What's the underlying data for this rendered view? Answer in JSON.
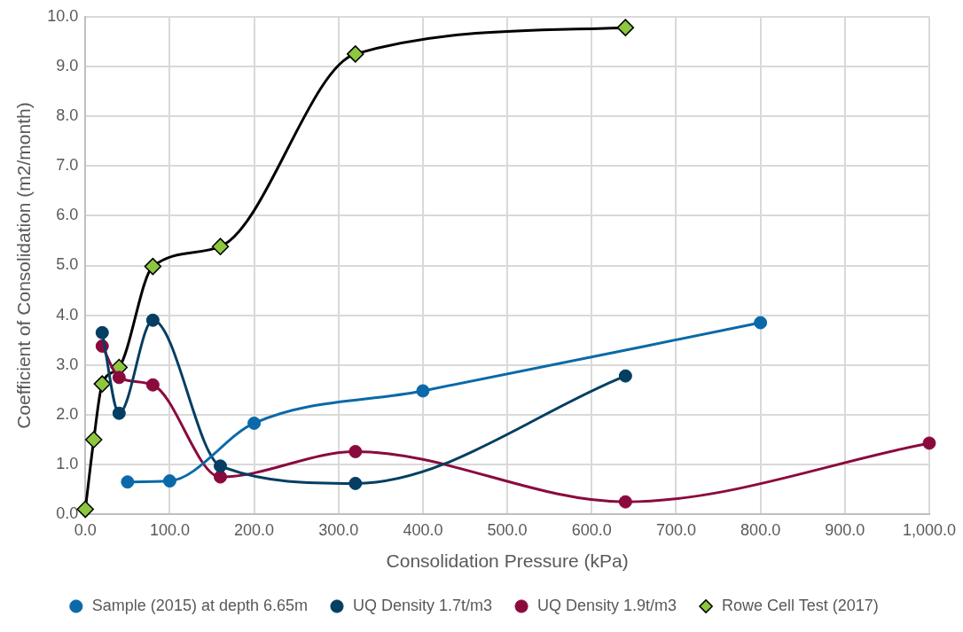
{
  "chart_data": {
    "type": "line",
    "xlabel": "Consolidation Pressure (kPa)",
    "ylabel": "Coefficient of Consolidation (m2/month)",
    "xlim": [
      0,
      1000
    ],
    "ylim": [
      0,
      10
    ],
    "xticks": [
      {
        "value": 0,
        "label": "0.0"
      },
      {
        "value": 100,
        "label": "100.0"
      },
      {
        "value": 200,
        "label": "200.0"
      },
      {
        "value": 300,
        "label": "300.0"
      },
      {
        "value": 400,
        "label": "400.0"
      },
      {
        "value": 500,
        "label": "500.0"
      },
      {
        "value": 600,
        "label": "600.0"
      },
      {
        "value": 700,
        "label": "700.0"
      },
      {
        "value": 800,
        "label": "800.0"
      },
      {
        "value": 900,
        "label": "900.0"
      },
      {
        "value": 1000,
        "label": "1,000.0"
      }
    ],
    "yticks": [
      {
        "value": 0,
        "label": "0.0"
      },
      {
        "value": 1,
        "label": "1.0"
      },
      {
        "value": 2,
        "label": "2.0"
      },
      {
        "value": 3,
        "label": "3.0"
      },
      {
        "value": 4,
        "label": "4.0"
      },
      {
        "value": 5,
        "label": "5.0"
      },
      {
        "value": 6,
        "label": "6.0"
      },
      {
        "value": 7,
        "label": "7.0"
      },
      {
        "value": 8,
        "label": "8.0"
      },
      {
        "value": 9,
        "label": "9.0"
      },
      {
        "value": 10,
        "label": "10.0"
      }
    ],
    "grid": true,
    "legend": "bottom",
    "marker": "circle",
    "line_style": "solid",
    "series": [
      {
        "name": "Sample (2015) at depth 6.65m",
        "color": "#0a69a8",
        "x": [
          50,
          100,
          200,
          400,
          800
        ],
        "values": [
          0.65,
          0.67,
          1.83,
          2.48,
          3.85
        ]
      },
      {
        "name": "UQ Density 1.7t/m3",
        "color": "#043e62",
        "x": [
          20,
          40,
          80,
          160,
          320,
          640
        ],
        "values": [
          3.65,
          2.03,
          3.9,
          0.97,
          0.62,
          2.78
        ]
      },
      {
        "name": "UQ Density 1.9t/m3",
        "color": "#8a0a3e",
        "x": [
          20,
          40,
          80,
          160,
          320,
          640,
          1000
        ],
        "values": [
          3.38,
          2.75,
          2.6,
          0.75,
          1.26,
          0.25,
          1.43
        ]
      },
      {
        "name": "Rowe Cell Test (2017)",
        "color": "#000000",
        "marker": "diamond",
        "x": [
          0,
          10,
          20,
          40,
          80,
          160,
          320,
          640
        ],
        "values": [
          0.1,
          1.5,
          2.62,
          2.95,
          4.98,
          5.38,
          9.25,
          9.78
        ]
      }
    ]
  }
}
